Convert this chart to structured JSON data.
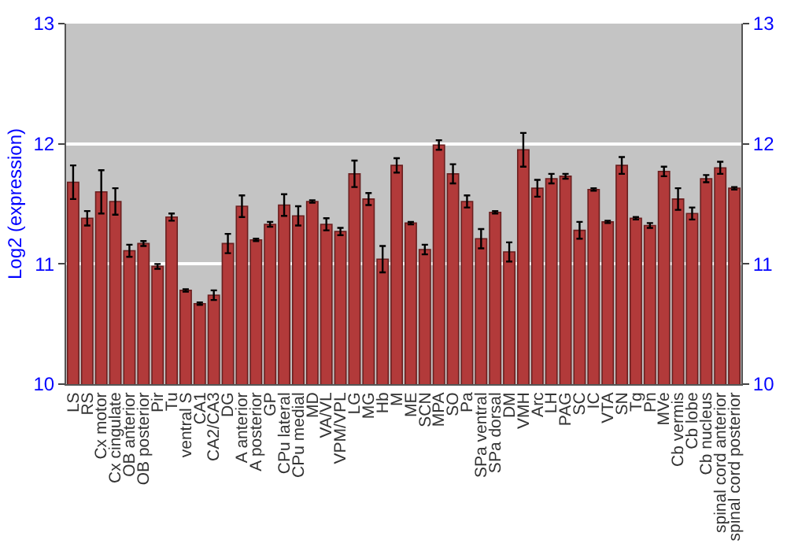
{
  "chart_data": {
    "type": "bar",
    "ylabel": "Log2 (expression)",
    "categories": [
      "LS",
      "RS",
      "Cx motor",
      "Cx cingulate",
      "OB anterior",
      "OB posterior",
      "Pir",
      "Tu",
      "ventral S",
      "CA1",
      "CA2/CA3",
      "DG",
      "A anterior",
      "A posterior",
      "GP",
      "CPu lateral",
      "CPu medial",
      "MD",
      "VA/VL",
      "VPM/VPL",
      "LG",
      "MG",
      "Hb",
      "M",
      "ME",
      "SCN",
      "MPA",
      "SO",
      "Pa",
      "SPa ventral",
      "SPa dorsal",
      "DM",
      "VMH",
      "Arc",
      "LH",
      "PAG",
      "SC",
      "IC",
      "VTA",
      "SN",
      "Tg",
      "Pn",
      "MVe",
      "Cb vermis",
      "Cb lobe",
      "Cb nucleus",
      "spinal cord anterior",
      "spinal cord posterior"
    ],
    "values": [
      11.68,
      11.38,
      11.6,
      11.52,
      11.11,
      11.17,
      10.98,
      11.39,
      10.78,
      10.67,
      10.74,
      11.17,
      11.48,
      11.2,
      11.33,
      11.49,
      11.4,
      11.52,
      11.33,
      11.27,
      11.75,
      11.54,
      11.04,
      11.82,
      11.34,
      11.12,
      11.99,
      11.75,
      11.52,
      11.21,
      11.43,
      11.1,
      11.95,
      11.63,
      11.71,
      11.73,
      11.28,
      11.62,
      11.35,
      11.82,
      11.38,
      11.32,
      11.77,
      11.54,
      11.42,
      11.71,
      11.8,
      11.63
    ],
    "errors": [
      0.14,
      0.06,
      0.18,
      0.11,
      0.05,
      0.02,
      0.02,
      0.03,
      0.01,
      0.01,
      0.04,
      0.08,
      0.09,
      0.01,
      0.02,
      0.09,
      0.08,
      0.01,
      0.05,
      0.03,
      0.11,
      0.05,
      0.11,
      0.06,
      0.01,
      0.04,
      0.04,
      0.08,
      0.05,
      0.08,
      0.01,
      0.08,
      0.14,
      0.07,
      0.04,
      0.02,
      0.07,
      0.01,
      0.01,
      0.07,
      0.01,
      0.02,
      0.04,
      0.09,
      0.05,
      0.03,
      0.05,
      0.01
    ],
    "color": "#b23a3a",
    "ylim": [
      10,
      13
    ],
    "yticks": [
      10,
      11,
      12,
      13
    ],
    "y2lim": [
      10,
      13
    ],
    "y2ticks": [
      10,
      11,
      12,
      13
    ],
    "grid": "y"
  }
}
